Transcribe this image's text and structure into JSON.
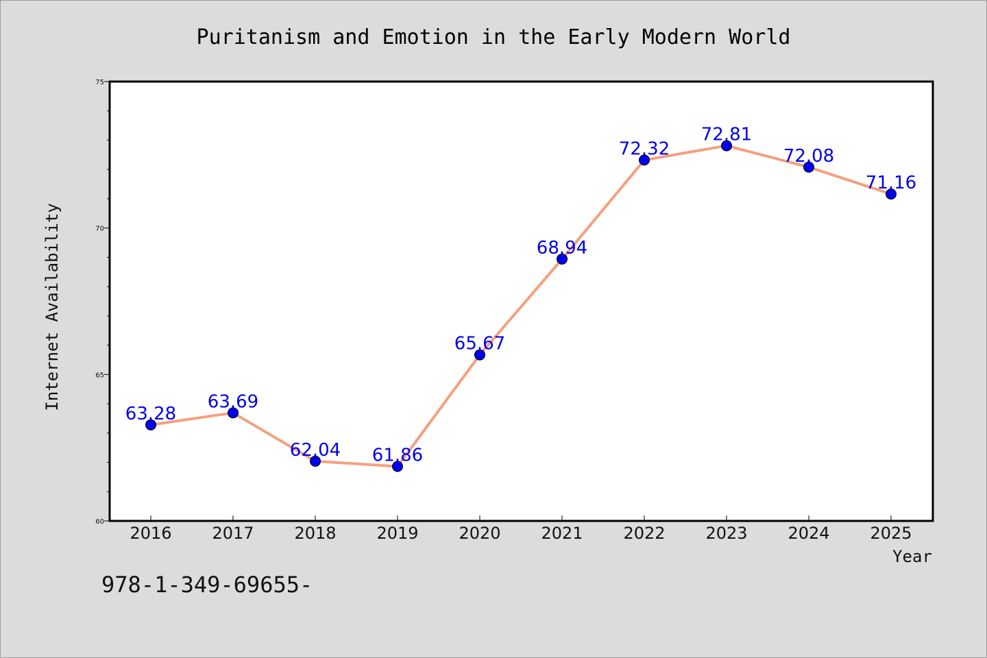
{
  "chart_data": {
    "type": "line",
    "title": "Puritanism and Emotion in the Early Modern World",
    "xlabel": "Year",
    "ylabel": "Internet Availability",
    "categories": [
      "2016",
      "2017",
      "2018",
      "2019",
      "2020",
      "2021",
      "2022",
      "2023",
      "2024",
      "2025"
    ],
    "series": [
      {
        "values": [
          63.28,
          63.69,
          62.04,
          61.86,
          65.67,
          68.94,
          72.32,
          72.81,
          72.08,
          71.16
        ],
        "data_labels": [
          "63.28",
          "63.69",
          "62.04",
          "61.86",
          "65.67",
          "68.94",
          "72.32",
          "72.81",
          "72.08",
          "71.16"
        ]
      }
    ],
    "ylim": [
      60,
      75
    ],
    "yticks": [
      60,
      65,
      70,
      75
    ],
    "grid": false,
    "legend": "none",
    "colors": {
      "line": "#f4a07e",
      "marker": "#0000ee",
      "data_label": "#0000ee",
      "background": "#dcdcdc",
      "plot_background": "#ffffff"
    }
  },
  "footer_text": "978-1-349-69655-"
}
